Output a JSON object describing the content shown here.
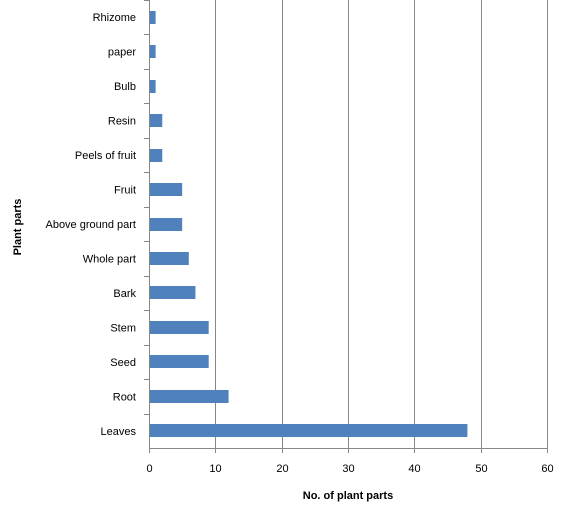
{
  "chart_data": {
    "type": "bar",
    "orientation": "horizontal",
    "xlabel": "No. of plant parts",
    "ylabel": "Plant parts",
    "xlim": [
      0,
      60
    ],
    "x_ticks": [
      "0",
      "10",
      "20",
      "30",
      "40",
      "50",
      "60"
    ],
    "grid": true,
    "legend": "none",
    "bar_color": "#4f81bd",
    "categories": [
      "Rhizome",
      "paper",
      "Bulb",
      "Resin",
      "Peels of fruit",
      "Fruit",
      "Above ground part",
      "Whole part",
      "Bark",
      "Stem",
      "Seed",
      "Root",
      "Leaves"
    ],
    "values": [
      1,
      1,
      1,
      2,
      2,
      5,
      5,
      6,
      7,
      9,
      9,
      12,
      48
    ]
  }
}
